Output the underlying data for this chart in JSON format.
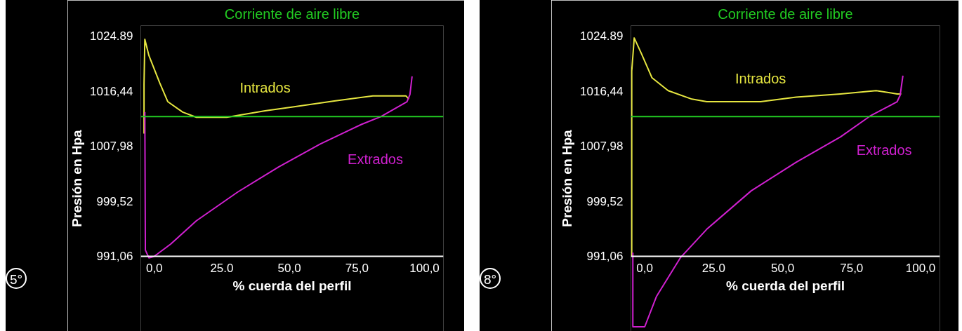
{
  "chart_data": [
    {
      "type": "line",
      "xlabel": "% cuerda del perfil",
      "ylabel": "Presión en Hpa",
      "xlim": [
        -5,
        107
      ],
      "ylim": [
        979.5,
        1026.5
      ],
      "xticks": [
        {
          "value": 0,
          "label": "0,0"
        },
        {
          "value": 25,
          "label": "25.0"
        },
        {
          "value": 50,
          "label": "50,0"
        },
        {
          "value": 75,
          "label": "75,0"
        },
        {
          "value": 100,
          "label": "100,0"
        }
      ],
      "yticks": [
        {
          "value": 991.06,
          "label": "991,06"
        },
        {
          "value": 999.52,
          "label": "999,52"
        },
        {
          "value": 1007.98,
          "label": "1007,98"
        },
        {
          "value": 1016.44,
          "label": "1016,44"
        },
        {
          "value": 1024.89,
          "label": "1024.89"
        }
      ],
      "ref_lines": [
        {
          "axis": "y",
          "value": 1012.5,
          "label": "Corriente de aire libre",
          "color": "#22cc22"
        }
      ],
      "annotations": [
        "5°"
      ],
      "grid": false,
      "series": [
        {
          "name": "Intrados",
          "color": "#e6e640",
          "x": [
            -3.8,
            -3.8,
            -3.5,
            -2,
            2,
            5,
            10.5,
            15.6,
            26.8,
            41,
            51.3,
            66.6,
            80.9,
            93.1,
            94.2
          ],
          "values": [
            1009.9,
            1017.5,
            1024.4,
            1021.9,
            1017.7,
            1014.8,
            1013.2,
            1012.4,
            1012.4,
            1013.4,
            1014.0,
            1014.9,
            1015.7,
            1015.7,
            1015.2
          ]
        },
        {
          "name": "Extrados",
          "color": "#d020d0",
          "x": [
            -3.5,
            -3.3,
            -2,
            -0.1,
            6,
            15.6,
            30.8,
            46.1,
            61.4,
            76.6,
            83.8,
            93.5,
            94.6,
            95.4
          ],
          "values": [
            1013.2,
            992,
            990.8,
            991.0,
            992.9,
            996.5,
            1000.9,
            1004.8,
            1008.3,
            1011.3,
            1012.5,
            1014.8,
            1015.9,
            1018.7
          ]
        }
      ]
    },
    {
      "type": "line",
      "xlabel": "% cuerda del perfil",
      "ylabel": "Presión en Hpa",
      "xlim": [
        -5,
        107
      ],
      "ylim": [
        979.5,
        1026.5
      ],
      "xticks": [
        {
          "value": 0,
          "label": "0,0"
        },
        {
          "value": 25,
          "label": "25.0"
        },
        {
          "value": 50,
          "label": "50,0"
        },
        {
          "value": 75,
          "label": "75,0"
        },
        {
          "value": 100,
          "label": "100,0"
        }
      ],
      "yticks": [
        {
          "value": 991.06,
          "label": "991,06"
        },
        {
          "value": 999.52,
          "label": "999,52"
        },
        {
          "value": 1007.98,
          "label": "1007,98"
        },
        {
          "value": 1016.44,
          "label": "1016,44"
        },
        {
          "value": 1024.89,
          "label": "1024.89"
        }
      ],
      "ref_lines": [
        {
          "axis": "y",
          "value": 1012.5,
          "label": "Corriente de aire libre",
          "color": "#22cc22"
        }
      ],
      "annotations": [
        "8°"
      ],
      "grid": false,
      "series": [
        {
          "name": "Intrados",
          "color": "#e6e640",
          "x": [
            -4.7,
            -4.7,
            -3.8,
            -1.2,
            2.6,
            8.5,
            17.1,
            22.5,
            42,
            54.9,
            71,
            83.9,
            91.5,
            93
          ],
          "values": [
            991.0,
            1019.5,
            1024.6,
            1022.2,
            1018.5,
            1016.5,
            1015.2,
            1014.8,
            1014.8,
            1015.5,
            1016.0,
            1016.5,
            1016.0,
            1016.0
          ]
        },
        {
          "name": "Extrados",
          "color": "#d020d0",
          "x": [
            -4.3,
            -4.3,
            0,
            4.3,
            12.9,
            22.5,
            38.6,
            54.9,
            71,
            81.7,
            91.5,
            92.6,
            93.6
          ],
          "values": [
            991.6,
            980.2,
            980.2,
            984.9,
            990.8,
            995.2,
            1001.1,
            1005.5,
            1009.4,
            1012.6,
            1014.8,
            1015.8,
            1018.8
          ]
        }
      ]
    }
  ]
}
